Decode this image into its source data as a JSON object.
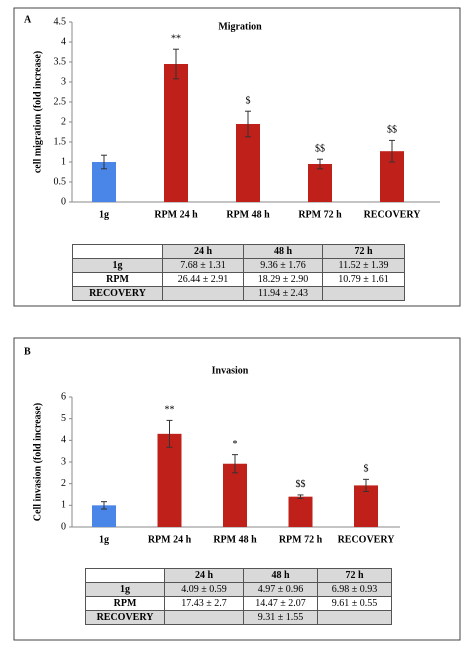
{
  "chart_data": [
    {
      "type": "bar",
      "panel_label": "A",
      "title": "Migration",
      "y_label": "cell migration (fold increase)",
      "categories": [
        "1g",
        "RPM 24 h",
        "RPM 48 h",
        "RPM 72 h",
        "RECOVERY"
      ],
      "values": [
        1,
        3.45,
        1.95,
        0.95,
        1.27
      ],
      "errors": [
        0.17,
        0.37,
        0.32,
        0.12,
        0.27
      ],
      "annotations": [
        null,
        "**",
        "$",
        "$$",
        "$$"
      ],
      "colors": [
        "#4a86e8",
        "#c0201a",
        "#c0201a",
        "#c0201a",
        "#c0201a"
      ],
      "ylim": [
        0,
        4.5
      ],
      "yticks": [
        0,
        0.5,
        1,
        1.5,
        2,
        2.5,
        3,
        3.5,
        4,
        4.5
      ]
    },
    {
      "type": "bar",
      "panel_label": "B",
      "title": "Invasion",
      "y_label": "Cell invasion (fold increase)",
      "categories": [
        "1g",
        "RPM 24 h",
        "RPM 48 h",
        "RPM 72 h",
        "RECOVERY"
      ],
      "values": [
        1,
        4.3,
        2.92,
        1.4,
        1.92
      ],
      "errors": [
        0.17,
        0.62,
        0.42,
        0.08,
        0.28
      ],
      "annotations": [
        null,
        "**",
        "*",
        "$$",
        "$"
      ],
      "colors": [
        "#4a86e8",
        "#c0201a",
        "#c0201a",
        "#c0201a",
        "#c0201a"
      ],
      "ylim": [
        0,
        6
      ],
      "yticks": [
        0,
        1,
        2,
        3,
        4,
        5,
        6
      ]
    }
  ],
  "tables": [
    {
      "header": [
        null,
        "24 h",
        "48 h",
        "72 h"
      ],
      "rows": [
        [
          "1g",
          "7.68 ± 1.31",
          "9.36 ± 1.76",
          "11.52 ± 1.39"
        ],
        [
          "RPM",
          "26.44 ± 2.91",
          "18.29 ± 2.90",
          "10.79 ± 1.61"
        ],
        [
          "RECOVERY",
          null,
          "11.94 ± 2.43",
          null
        ]
      ]
    },
    {
      "header": [
        null,
        "24 h",
        "48 h",
        "72 h"
      ],
      "rows": [
        [
          "1g",
          "4.09 ± 0.59",
          "4.97 ± 0.96",
          "6.98 ± 0.93"
        ],
        [
          "RPM",
          "17.43 ± 2.7",
          "14.47 ± 2.07",
          "9.61 ± 0.55"
        ],
        [
          "RECOVERY",
          null,
          "9.31 ± 1.55",
          null
        ]
      ]
    }
  ]
}
